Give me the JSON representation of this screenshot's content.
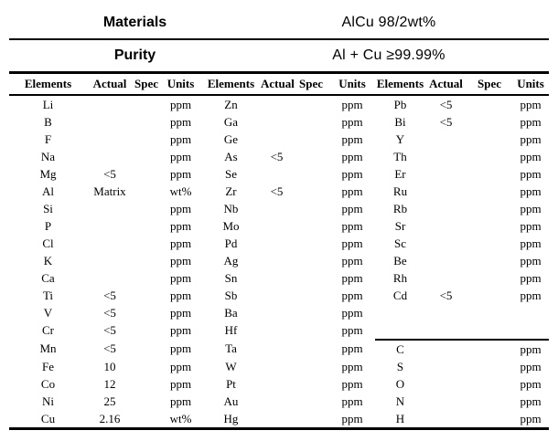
{
  "page": {
    "background_color": "#ffffff",
    "text_color": "#000000"
  },
  "header": {
    "materials_label": "Materials",
    "materials_value": "AlCu 98/2wt%",
    "purity_label": "Purity",
    "purity_value": "Al + Cu ≥99.99%"
  },
  "table": {
    "column_headers": [
      "Elements",
      "Actual",
      "Spec",
      "Units",
      "Elements",
      "Actual",
      "Spec",
      "Units",
      "Elements",
      "Actual",
      "Spec",
      "Units"
    ],
    "group3_divider_before_row": 14,
    "groups": [
      {
        "rows": [
          {
            "element": "Li",
            "actual": "",
            "spec": "",
            "units": "ppm"
          },
          {
            "element": "B",
            "actual": "",
            "spec": "",
            "units": "ppm"
          },
          {
            "element": "F",
            "actual": "",
            "spec": "",
            "units": "ppm"
          },
          {
            "element": "Na",
            "actual": "",
            "spec": "",
            "units": "ppm"
          },
          {
            "element": "Mg",
            "actual": "<5",
            "spec": "",
            "units": "ppm"
          },
          {
            "element": "Al",
            "actual": "Matrix",
            "spec": "",
            "units": "wt%"
          },
          {
            "element": "Si",
            "actual": "",
            "spec": "",
            "units": "ppm"
          },
          {
            "element": "P",
            "actual": "",
            "spec": "",
            "units": "ppm"
          },
          {
            "element": "Cl",
            "actual": "",
            "spec": "",
            "units": "ppm"
          },
          {
            "element": "K",
            "actual": "",
            "spec": "",
            "units": "ppm"
          },
          {
            "element": "Ca",
            "actual": "",
            "spec": "",
            "units": "ppm"
          },
          {
            "element": "Ti",
            "actual": "<5",
            "spec": "",
            "units": "ppm"
          },
          {
            "element": "V",
            "actual": "<5",
            "spec": "",
            "units": "ppm"
          },
          {
            "element": "Cr",
            "actual": "<5",
            "spec": "",
            "units": "ppm"
          },
          {
            "element": "Mn",
            "actual": "<5",
            "spec": "",
            "units": "ppm"
          },
          {
            "element": "Fe",
            "actual": "10",
            "spec": "",
            "units": "ppm"
          },
          {
            "element": "Co",
            "actual": "12",
            "spec": "",
            "units": "ppm"
          },
          {
            "element": "Ni",
            "actual": "25",
            "spec": "",
            "units": "ppm"
          },
          {
            "element": "Cu",
            "actual": "2.16",
            "spec": "",
            "units": "wt%"
          }
        ]
      },
      {
        "rows": [
          {
            "element": "Zn",
            "actual": "",
            "spec": "",
            "units": "ppm"
          },
          {
            "element": "Ga",
            "actual": "",
            "spec": "",
            "units": "ppm"
          },
          {
            "element": "Ge",
            "actual": "",
            "spec": "",
            "units": "ppm"
          },
          {
            "element": "As",
            "actual": "<5",
            "spec": "",
            "units": "ppm"
          },
          {
            "element": "Se",
            "actual": "",
            "spec": "",
            "units": "ppm"
          },
          {
            "element": "Zr",
            "actual": "<5",
            "spec": "",
            "units": "ppm"
          },
          {
            "element": "Nb",
            "actual": "",
            "spec": "",
            "units": "ppm"
          },
          {
            "element": "Mo",
            "actual": "",
            "spec": "",
            "units": "ppm"
          },
          {
            "element": "Pd",
            "actual": "",
            "spec": "",
            "units": "ppm"
          },
          {
            "element": "Ag",
            "actual": "",
            "spec": "",
            "units": "ppm"
          },
          {
            "element": "Sn",
            "actual": "",
            "spec": "",
            "units": "ppm"
          },
          {
            "element": "Sb",
            "actual": "",
            "spec": "",
            "units": "ppm"
          },
          {
            "element": "Ba",
            "actual": "",
            "spec": "",
            "units": "ppm"
          },
          {
            "element": "Hf",
            "actual": "",
            "spec": "",
            "units": "ppm"
          },
          {
            "element": "Ta",
            "actual": "",
            "spec": "",
            "units": "ppm"
          },
          {
            "element": "W",
            "actual": "",
            "spec": "",
            "units": "ppm"
          },
          {
            "element": "Pt",
            "actual": "",
            "spec": "",
            "units": "ppm"
          },
          {
            "element": "Au",
            "actual": "",
            "spec": "",
            "units": "ppm"
          },
          {
            "element": "Hg",
            "actual": "",
            "spec": "",
            "units": "ppm"
          }
        ]
      },
      {
        "rows": [
          {
            "element": "Pb",
            "actual": "<5",
            "spec": "",
            "units": "ppm"
          },
          {
            "element": "Bi",
            "actual": "<5",
            "spec": "",
            "units": "ppm"
          },
          {
            "element": "Y",
            "actual": "",
            "spec": "",
            "units": "ppm"
          },
          {
            "element": "Th",
            "actual": "",
            "spec": "",
            "units": "ppm"
          },
          {
            "element": "Er",
            "actual": "",
            "spec": "",
            "units": "ppm"
          },
          {
            "element": "Ru",
            "actual": "",
            "spec": "",
            "units": "ppm"
          },
          {
            "element": "Rb",
            "actual": "",
            "spec": "",
            "units": "ppm"
          },
          {
            "element": "Sr",
            "actual": "",
            "spec": "",
            "units": "ppm"
          },
          {
            "element": "Sc",
            "actual": "",
            "spec": "",
            "units": "ppm"
          },
          {
            "element": "Be",
            "actual": "",
            "spec": "",
            "units": "ppm"
          },
          {
            "element": "Rh",
            "actual": "",
            "spec": "",
            "units": "ppm"
          },
          {
            "element": "Cd",
            "actual": "<5",
            "spec": "",
            "units": "ppm"
          },
          {
            "element": "",
            "actual": "",
            "spec": "",
            "units": ""
          },
          {
            "element": "",
            "actual": "",
            "spec": "",
            "units": ""
          },
          {
            "element": "C",
            "actual": "",
            "spec": "",
            "units": "ppm"
          },
          {
            "element": "S",
            "actual": "",
            "spec": "",
            "units": "ppm"
          },
          {
            "element": "O",
            "actual": "",
            "spec": "",
            "units": "ppm"
          },
          {
            "element": "N",
            "actual": "",
            "spec": "",
            "units": "ppm"
          },
          {
            "element": "H",
            "actual": "",
            "spec": "",
            "units": "ppm"
          }
        ]
      }
    ]
  }
}
